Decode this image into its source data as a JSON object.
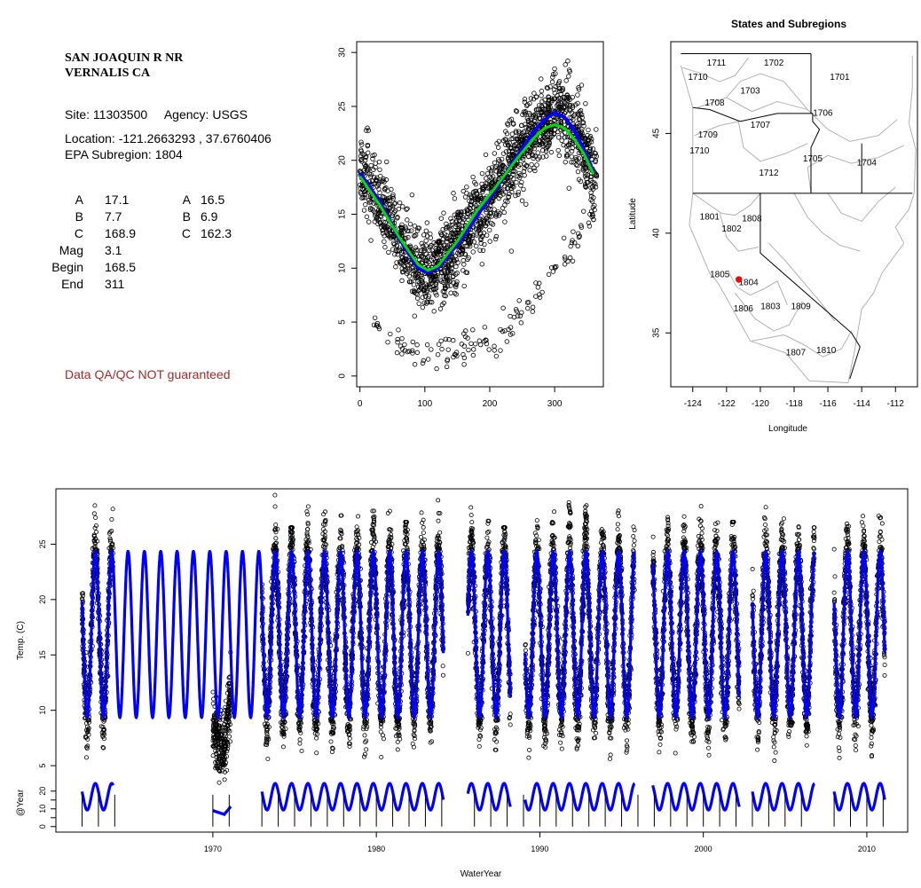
{
  "station": {
    "name_line1": "SAN JOAQUIN R NR",
    "name_line2": "VERNALIS CA",
    "site_label": "Site:",
    "site": "11303500",
    "agency_label": "Agency:",
    "agency": "USGS",
    "location_label": "Location:",
    "location": "-121.2663293 , 37.6760406",
    "epa_label": "EPA Subregion:",
    "epa_subregion": "1804"
  },
  "params": [
    {
      "label": "A",
      "value": "17.1",
      "label2": "A",
      "value2": "16.5"
    },
    {
      "label": "B",
      "value": "7.7",
      "label2": "B",
      "value2": "6.9"
    },
    {
      "label": "C",
      "value": "168.9",
      "label2": "C",
      "value2": "162.3"
    },
    {
      "label": "Mag",
      "value": "3.1",
      "label2": "",
      "value2": ""
    },
    {
      "label": "Begin",
      "value": "168.5",
      "label2": "",
      "value2": ""
    },
    {
      "label": "End",
      "value": "311",
      "label2": "",
      "value2": ""
    }
  ],
  "qa_note": "Data QA/QC NOT guaranteed",
  "colors": {
    "points": "#000000",
    "fit_blue": "#0000ff",
    "fit_green": "#00dd00",
    "site_marker": "#ff0000",
    "boundary": "#aaaaaa",
    "qa_text": "#a52a2a"
  },
  "chart_data": [
    {
      "type": "scatter",
      "title": "",
      "xlabel": "",
      "ylabel": "",
      "xlim": [
        -5,
        375
      ],
      "ylim": [
        -1,
        31
      ],
      "xticks": [
        0,
        100,
        200,
        300
      ],
      "yticks": [
        0,
        5,
        10,
        15,
        20,
        25,
        30
      ],
      "series": [
        {
          "type": "scatter",
          "description_points": "daily temperature vs day of water year",
          "x": [
            0,
            10,
            20,
            30,
            40,
            50,
            60,
            70,
            80,
            90,
            100,
            110,
            120,
            130,
            140,
            150,
            160,
            170,
            180,
            190,
            200,
            210,
            220,
            230,
            240,
            250,
            260,
            270,
            280,
            290,
            300,
            310,
            320,
            330,
            340,
            350,
            360
          ],
          "y": [
            19,
            18,
            17,
            16,
            15,
            13.5,
            12.5,
            11.5,
            10.5,
            10,
            9.5,
            9.8,
            10.5,
            11.5,
            12.5,
            13.5,
            14.5,
            15.5,
            16.5,
            17.5,
            18,
            19,
            19.5,
            20.5,
            21.5,
            22.5,
            23,
            24,
            24.5,
            25,
            24.5,
            24,
            23.5,
            22.5,
            21.5,
            20,
            19
          ]
        },
        {
          "type": "line",
          "color": "#0000ff",
          "x": [
            0,
            30,
            60,
            90,
            105,
            120,
            150,
            180,
            210,
            240,
            270,
            285,
            300,
            315,
            330,
            345,
            360
          ],
          "y": [
            18.8,
            16.2,
            12.8,
            10.0,
            9.6,
            10.0,
            12.2,
            14.8,
            17.4,
            20.2,
            22.8,
            23.8,
            24.4,
            24.0,
            22.8,
            21.0,
            18.9
          ]
        },
        {
          "type": "line",
          "color": "#00dd00",
          "x": [
            0,
            30,
            60,
            90,
            105,
            120,
            150,
            180,
            210,
            240,
            270,
            285,
            300,
            315,
            330,
            345,
            360
          ],
          "y": [
            18.5,
            15.9,
            12.9,
            10.3,
            9.8,
            10.2,
            12.5,
            15.3,
            17.6,
            20.0,
            22.2,
            23.0,
            23.3,
            23.0,
            22.0,
            20.6,
            18.7
          ]
        }
      ]
    },
    {
      "type": "map",
      "title": "States and Subregions",
      "xlabel": "Longitude",
      "ylabel": "Latitude",
      "xlim": [
        -125.3,
        -110.7
      ],
      "ylim": [
        32.3,
        49.6
      ],
      "xticks": [
        -124,
        -122,
        -120,
        -118,
        -116,
        -114,
        -112
      ],
      "yticks": [
        35,
        40,
        45
      ],
      "site": {
        "lon": -121.27,
        "lat": 37.68
      },
      "regions": [
        {
          "label": "1711",
          "lon": -122.6,
          "lat": 48.5
        },
        {
          "label": "1710",
          "lon": -123.7,
          "lat": 47.8
        },
        {
          "label": "1702",
          "lon": -119.2,
          "lat": 48.5
        },
        {
          "label": "1701",
          "lon": -115.3,
          "lat": 47.8
        },
        {
          "label": "1703",
          "lon": -120.6,
          "lat": 47.1
        },
        {
          "label": "1708",
          "lon": -122.7,
          "lat": 46.5
        },
        {
          "label": "1706",
          "lon": -116.3,
          "lat": 46.0
        },
        {
          "label": "1707",
          "lon": -120.0,
          "lat": 45.4
        },
        {
          "label": "1709",
          "lon": -123.1,
          "lat": 44.9
        },
        {
          "label": "1710",
          "lon": -123.6,
          "lat": 44.1
        },
        {
          "label": "1705",
          "lon": -116.9,
          "lat": 43.7
        },
        {
          "label": "1704",
          "lon": -113.7,
          "lat": 43.5
        },
        {
          "label": "1712",
          "lon": -119.5,
          "lat": 43.0
        },
        {
          "label": "1801",
          "lon": -123.0,
          "lat": 40.8
        },
        {
          "label": "1808",
          "lon": -120.5,
          "lat": 40.7
        },
        {
          "label": "1802",
          "lon": -121.7,
          "lat": 40.2
        },
        {
          "label": "1805",
          "lon": -122.4,
          "lat": 37.9
        },
        {
          "label": "1804",
          "lon": -120.7,
          "lat": 37.5
        },
        {
          "label": "1806",
          "lon": -121.0,
          "lat": 36.2
        },
        {
          "label": "1803",
          "lon": -119.4,
          "lat": 36.3
        },
        {
          "label": "1809",
          "lon": -117.6,
          "lat": 36.3
        },
        {
          "label": "1810",
          "lon": -116.1,
          "lat": 34.1
        },
        {
          "label": "1807",
          "lon": -117.9,
          "lat": 34.0
        }
      ]
    },
    {
      "type": "line",
      "title": "",
      "xlabel": "WaterYear",
      "ylabel": "Temp. (C)",
      "xlabel2": "",
      "ylabel2": "@Year",
      "xlim": [
        1960.4,
        2012.5
      ],
      "ylim": [
        -1,
        30
      ],
      "xticks": [
        1970,
        1980,
        1990,
        2000,
        2010
      ],
      "yticks": [
        5,
        10,
        15,
        20,
        25
      ],
      "yticks2": [
        0,
        10,
        20
      ],
      "yticks2_minor": [
        5,
        15
      ],
      "fit": {
        "mean": 16.85,
        "amplitude": 7.5,
        "peak_day": 297,
        "start": 1962.0,
        "end": 1973.0,
        "color": "#0000ff"
      },
      "observed_periods": [
        [
          1962.0,
          1963.9
        ],
        [
          1970.0,
          1971.1
        ],
        [
          1973.0,
          1984.1
        ],
        [
          1985.6,
          1988.2
        ],
        [
          1989.1,
          1995.8
        ],
        [
          1996.9,
          2002.2
        ],
        [
          2003.0,
          2006.8
        ],
        [
          2008.0,
          2011.1
        ]
      ],
      "peak_temps": [
        {
          "year": 1974,
          "peak": 26.5
        },
        {
          "year": 1979,
          "peak": 28.0
        },
        {
          "year": 1981,
          "peak": 27.0
        },
        {
          "year": 1987,
          "peak": 26.5
        },
        {
          "year": 1991,
          "peak": 30.0
        },
        {
          "year": 1992,
          "peak": 28.5
        },
        {
          "year": 2001,
          "peak": 27.0
        },
        {
          "year": 2006,
          "peak": 26.5
        },
        {
          "year": 2011,
          "peak": 29.5
        }
      ],
      "year_ticks": [
        1962,
        1963,
        1964,
        1970,
        1971,
        1973,
        1974,
        1975,
        1976,
        1977,
        1978,
        1979,
        1980,
        1981,
        1982,
        1983,
        1984,
        1986,
        1987,
        1988,
        1989,
        1990,
        1991,
        1992,
        1993,
        1994,
        1995,
        1996,
        1997,
        1998,
        1999,
        2000,
        2001,
        2002,
        2003,
        2004,
        2005,
        2006,
        2008,
        2009,
        2010,
        2011
      ]
    }
  ]
}
